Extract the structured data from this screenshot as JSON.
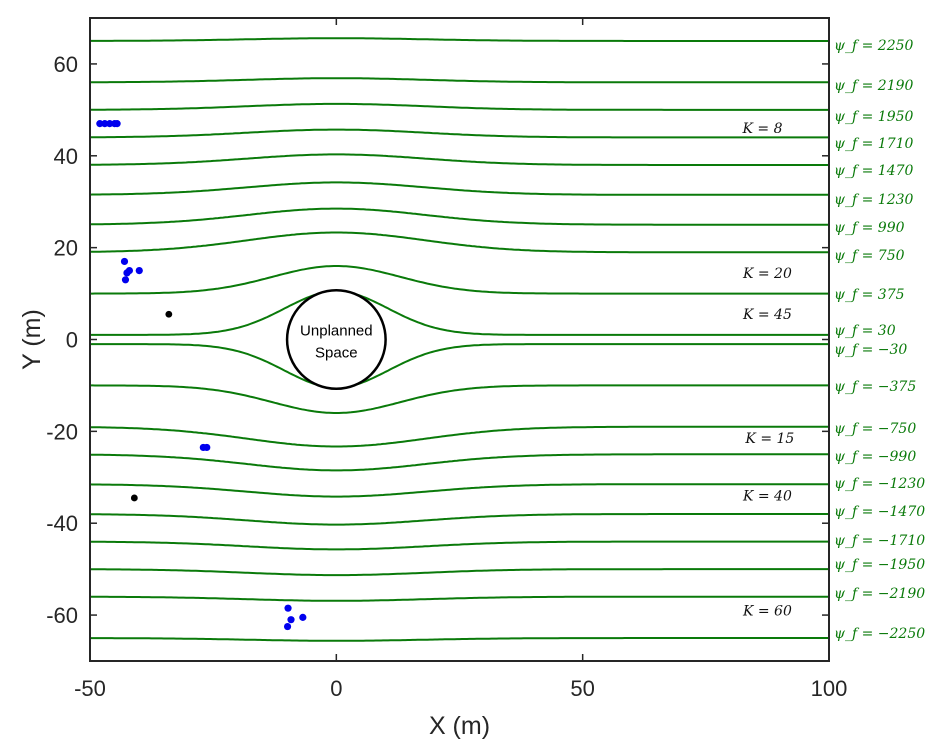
{
  "chart_data": {
    "type": "line",
    "title": "",
    "xlabel": "X (m)",
    "ylabel": "Y (m)",
    "xlim": [
      -50,
      100
    ],
    "ylim": [
      -70,
      70
    ],
    "xticks": [
      -50,
      0,
      50,
      100
    ],
    "yticks": [
      -60,
      -40,
      -20,
      0,
      20,
      40,
      60
    ],
    "grid": false,
    "obstacle": {
      "label_line1": "Unplanned",
      "label_line2": "Space",
      "center": [
        0,
        0
      ],
      "radius": 10
    },
    "streamlines": [
      {
        "label": "ψ_f = 2250",
        "y": 65,
        "peak": 0.6
      },
      {
        "label": "ψ_f = 2190",
        "y": 56,
        "peak": 0.9
      },
      {
        "label": "ψ_f = 1950",
        "y": 50,
        "peak": 1.3
      },
      {
        "label": "ψ_f = 1710",
        "y": 44,
        "peak": 1.7
      },
      {
        "label": "ψ_f = 1470",
        "y": 38,
        "peak": 2.3
      },
      {
        "label": "ψ_f = 1230",
        "y": 31.5,
        "peak": 2.7
      },
      {
        "label": "ψ_f = 990",
        "y": 25,
        "peak": 3.5
      },
      {
        "label": "ψ_f = 750",
        "y": 19,
        "peak": 4.3
      },
      {
        "label": "ψ_f = 375",
        "y": 10,
        "peak": 6
      },
      {
        "label": "ψ_f = 30",
        "y": 1,
        "peak": 9.5
      },
      {
        "label": "ψ_f = −30",
        "y": -1,
        "peak": -9.5
      },
      {
        "label": "ψ_f = −375",
        "y": -10,
        "peak": -6
      },
      {
        "label": "ψ_f = −750",
        "y": -19,
        "peak": -4.3
      },
      {
        "label": "ψ_f = −990",
        "y": -25,
        "peak": -3.5
      },
      {
        "label": "ψ_f = −1230",
        "y": -31.5,
        "peak": -2.7
      },
      {
        "label": "ψ_f = −1470",
        "y": -38,
        "peak": -2.3
      },
      {
        "label": "ψ_f = −1710",
        "y": -44,
        "peak": -1.7
      },
      {
        "label": "ψ_f = −1950",
        "y": -50,
        "peak": -1.3
      },
      {
        "label": "ψ_f = −2190",
        "y": -56,
        "peak": -0.9
      },
      {
        "label": "ψ_f = −2250",
        "y": -65,
        "peak": -0.6
      }
    ],
    "k_labels": [
      {
        "text": "K = 8",
        "x": 86.5,
        "y": 46
      },
      {
        "text": "K = 20",
        "x": 87.5,
        "y": 14.5
      },
      {
        "text": "K = 45",
        "x": 87.5,
        "y": 5.5
      },
      {
        "text": "K = 15",
        "x": 88,
        "y": -21.5
      },
      {
        "text": "K = 40",
        "x": 87.5,
        "y": -34
      },
      {
        "text": "K = 60",
        "x": 87.5,
        "y": -59
      }
    ],
    "points_blue": [
      {
        "x": -48,
        "y": 47
      },
      {
        "x": -47,
        "y": 47
      },
      {
        "x": -46,
        "y": 47
      },
      {
        "x": -45,
        "y": 47
      },
      {
        "x": -44.5,
        "y": 47
      },
      {
        "x": -43,
        "y": 17
      },
      {
        "x": -42,
        "y": 15
      },
      {
        "x": -42.5,
        "y": 14.5
      },
      {
        "x": -42.8,
        "y": 13
      },
      {
        "x": -40,
        "y": 15
      },
      {
        "x": -27,
        "y": -23.5
      },
      {
        "x": -26.3,
        "y": -23.5
      },
      {
        "x": -9.8,
        "y": -58.5
      },
      {
        "x": -9.2,
        "y": -61
      },
      {
        "x": -6.8,
        "y": -60.5
      },
      {
        "x": -9.9,
        "y": -62.5
      }
    ],
    "points_black": [
      {
        "x": -34,
        "y": 5.5
      },
      {
        "x": -41,
        "y": -34.5
      }
    ],
    "colors": {
      "streamline": "#0a7a0a",
      "points_blue": "#0000ee",
      "points_black": "#000000",
      "axis": "#262626"
    }
  }
}
